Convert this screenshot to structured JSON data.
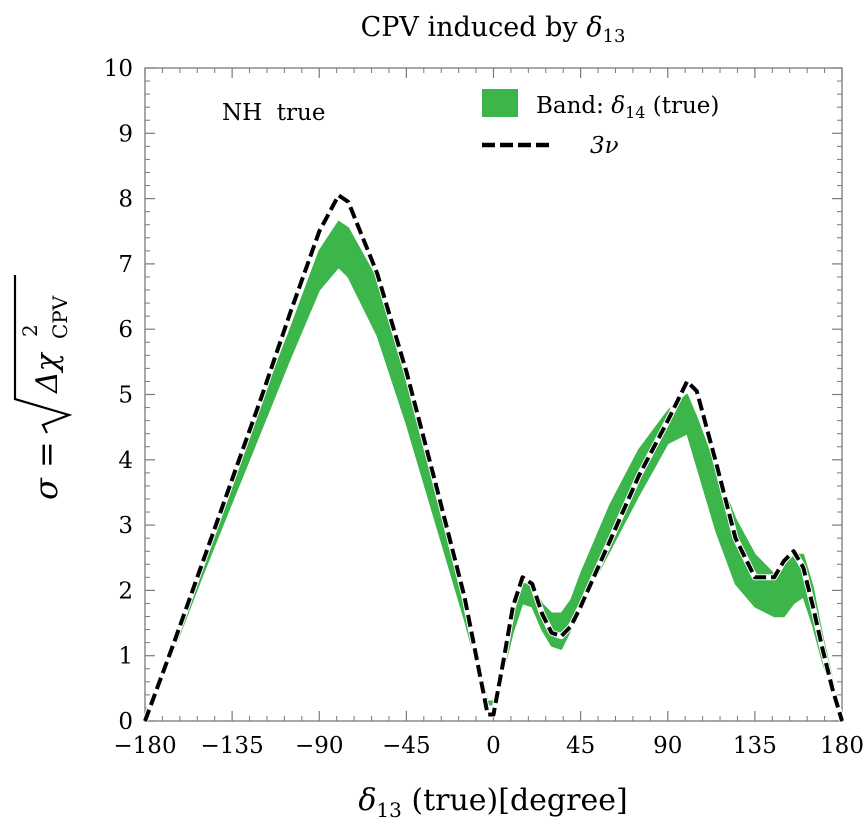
{
  "chart_data": {
    "type": "area",
    "title_main": "CPV induced by ",
    "title_sym": "δ",
    "title_sub": "13",
    "xlabel_sym": "δ",
    "xlabel_sub": "13",
    "xlabel_rest": "(true)[degree]",
    "ylabel_lhs": "σ = ",
    "ylabel_inner": "Δχ",
    "ylabel_sup": "2",
    "ylabel_sub": "CPV",
    "annotation": "NH  true",
    "xlim": [
      -180,
      180
    ],
    "ylim": [
      0,
      10
    ],
    "xticks": [
      -180,
      -135,
      -90,
      -45,
      0,
      45,
      90,
      135,
      180
    ],
    "xtick_labels": [
      "−180",
      "−135",
      "−90",
      "−45",
      "0",
      "45",
      "90",
      "135",
      "180"
    ],
    "yticks": [
      0,
      1,
      2,
      3,
      4,
      5,
      6,
      7,
      8,
      9,
      10
    ],
    "ytick_labels": [
      "0",
      "1",
      "2",
      "3",
      "4",
      "5",
      "6",
      "7",
      "8",
      "9",
      "10"
    ],
    "legend_position": "top-right",
    "series": [
      {
        "kind": "band",
        "legend_label": "Band: ",
        "legend_sym": "δ",
        "legend_sub": "14",
        "legend_rest": " (true)",
        "color": "#3cb54a",
        "x": [
          -180,
          -165,
          -150,
          -135,
          -120,
          -105,
          -90,
          -80,
          -75,
          -60,
          -45,
          -30,
          -15,
          -3,
          0,
          5,
          10,
          15,
          20,
          25,
          30,
          35,
          40,
          45,
          60,
          75,
          90,
          100,
          105,
          115,
          125,
          135,
          145,
          150,
          155,
          160,
          165,
          170,
          175,
          180
        ],
        "lower": [
          0,
          1.1,
          2.25,
          3.35,
          4.45,
          5.55,
          6.6,
          6.95,
          6.8,
          5.9,
          4.55,
          3.05,
          1.55,
          0.25,
          0.25,
          0.75,
          1.35,
          1.8,
          1.75,
          1.4,
          1.15,
          1.1,
          1.4,
          1.75,
          2.6,
          3.45,
          4.25,
          4.4,
          3.9,
          2.9,
          2.1,
          1.75,
          1.6,
          1.6,
          1.8,
          1.9,
          1.45,
          0.9,
          0.45,
          0
        ],
        "upper": [
          0,
          1.2,
          2.45,
          3.65,
          4.85,
          6.0,
          7.2,
          7.65,
          7.55,
          6.75,
          5.35,
          3.7,
          1.95,
          0.3,
          0.3,
          0.85,
          1.55,
          2.1,
          2.1,
          1.8,
          1.65,
          1.65,
          1.85,
          2.25,
          3.3,
          4.15,
          4.75,
          5.0,
          4.65,
          3.85,
          3.1,
          2.55,
          2.25,
          2.35,
          2.55,
          2.55,
          2.05,
          1.3,
          0.65,
          0
        ]
      },
      {
        "kind": "line",
        "legend_label": "3ν",
        "color": "#000000",
        "style": "dashed",
        "x": [
          -180,
          -165,
          -150,
          -135,
          -120,
          -105,
          -90,
          -80,
          -75,
          -60,
          -45,
          -30,
          -15,
          -3,
          0,
          5,
          10,
          15,
          20,
          25,
          30,
          35,
          40,
          45,
          60,
          75,
          90,
          100,
          105,
          115,
          125,
          135,
          145,
          150,
          155,
          160,
          165,
          170,
          175,
          180
        ],
        "y": [
          0,
          1.2,
          2.45,
          3.7,
          4.95,
          6.25,
          7.5,
          8.05,
          7.95,
          6.85,
          5.35,
          3.65,
          1.9,
          0.1,
          0.1,
          0.9,
          1.75,
          2.2,
          2.1,
          1.65,
          1.35,
          1.3,
          1.45,
          1.75,
          2.75,
          3.75,
          4.6,
          5.2,
          5.05,
          3.95,
          2.8,
          2.2,
          2.2,
          2.45,
          2.6,
          2.35,
          1.75,
          1.1,
          0.5,
          0
        ]
      }
    ]
  }
}
